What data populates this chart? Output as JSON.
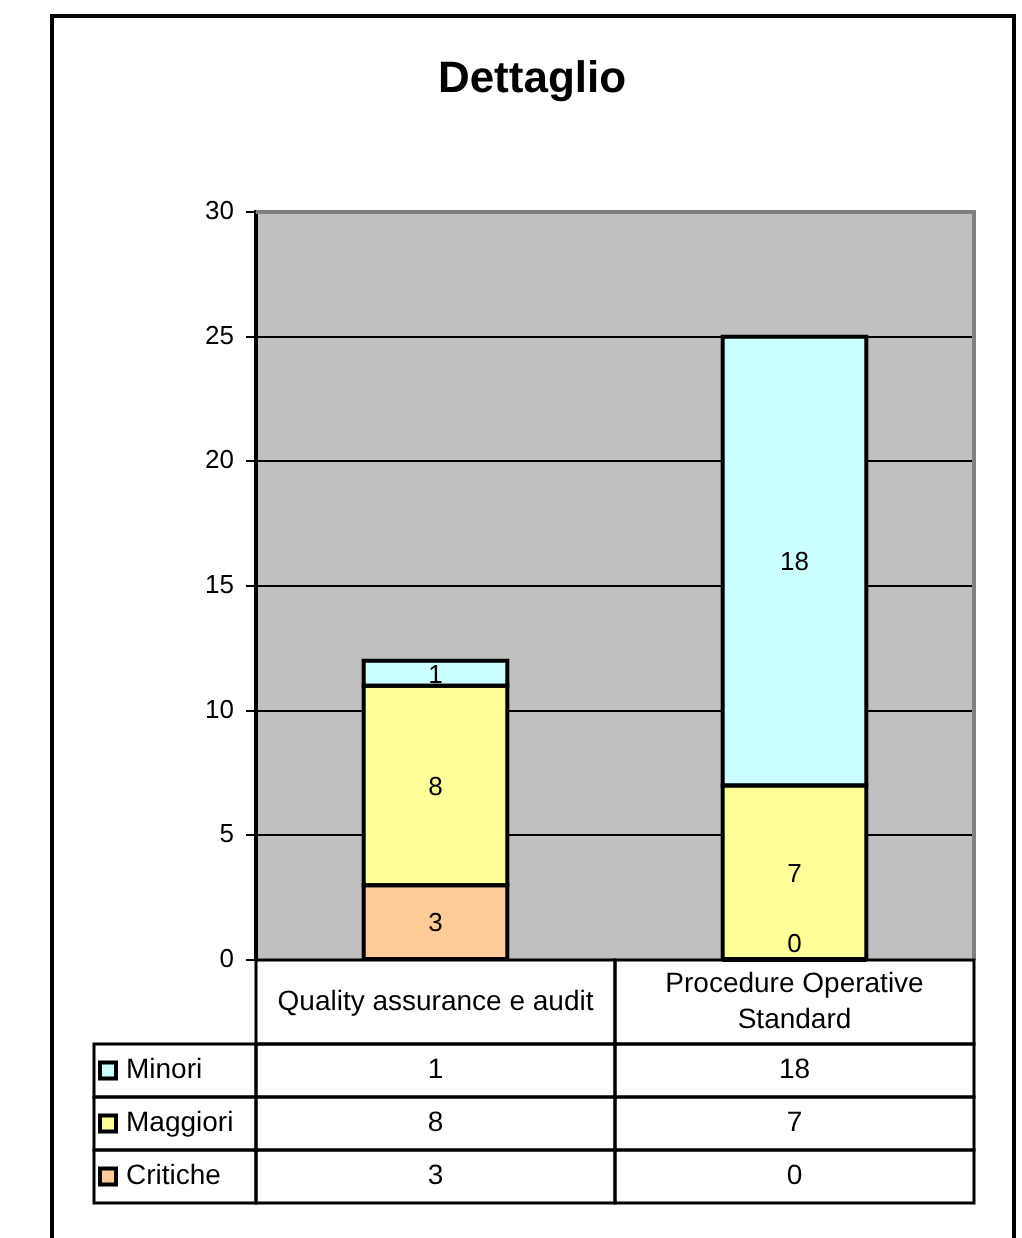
{
  "chart_data": {
    "type": "bar",
    "title": "Dettaglio",
    "categories": [
      "Quality assurance e audit",
      "Procedure Operative Standard"
    ],
    "stacked": true,
    "series": [
      {
        "name": "Critiche",
        "color": "#ffcc99",
        "values": [
          3,
          0
        ]
      },
      {
        "name": "Maggiori",
        "color": "#ffff99",
        "values": [
          8,
          7
        ]
      },
      {
        "name": "Minori",
        "color": "#ccffff",
        "values": [
          1,
          18
        ]
      }
    ],
    "ylim": [
      0,
      30
    ],
    "yticks": [
      0,
      5,
      10,
      15,
      20,
      25,
      30
    ],
    "annotations": [
      "3",
      "8",
      "1",
      "0",
      "7",
      "18"
    ],
    "grid": "y",
    "legend": "bottom",
    "data_labels": true
  }
}
